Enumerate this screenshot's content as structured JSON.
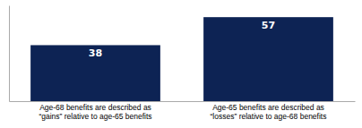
{
  "chart_data": {
    "type": "bar",
    "categories": [
      "Age-68 benefits are described as\n“gains” relative to age-65 benefits",
      "Age-65 benefits are described as\n“losses” relative to age-68 benefits"
    ],
    "values": [
      38,
      57
    ],
    "color": "#0d2354",
    "ylim": [
      0,
      65
    ],
    "data_labels": true,
    "tick_labels": "x"
  }
}
